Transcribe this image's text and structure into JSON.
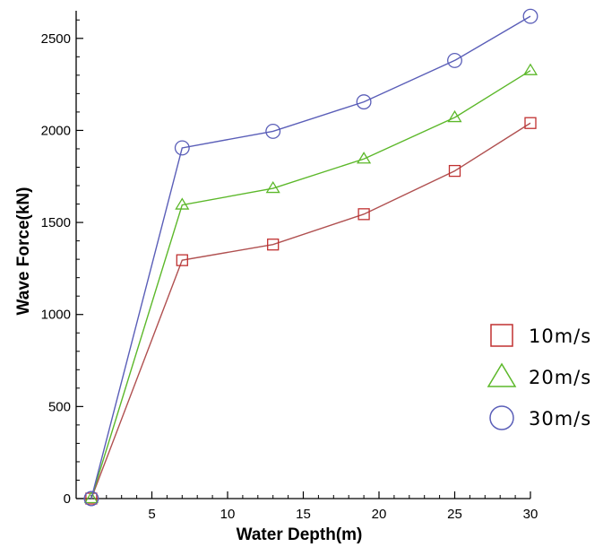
{
  "chart_data": {
    "type": "line",
    "xlabel": "Water Depth(m)",
    "ylabel": "Wave Force(kN)",
    "xlim": [
      0,
      30
    ],
    "ylim": [
      0,
      2650
    ],
    "xticks": [
      5,
      10,
      15,
      20,
      25,
      30
    ],
    "yticks": [
      0,
      500,
      1000,
      1500,
      2000,
      2500
    ],
    "grid": false,
    "legend_position": "right",
    "x": [
      1,
      7,
      13,
      19,
      25,
      30
    ],
    "series": [
      {
        "name": "10m/s",
        "marker": "square",
        "color": "#b05050",
        "marker_color": "#c03030",
        "values": [
          0,
          1295,
          1380,
          1545,
          1780,
          2040
        ]
      },
      {
        "name": "20m/s",
        "marker": "triangle",
        "color": "#5cb82a",
        "marker_color": "#5cb82a",
        "values": [
          0,
          1595,
          1685,
          1845,
          2070,
          2325
        ]
      },
      {
        "name": "30m/s",
        "marker": "circle",
        "color": "#5a5eb8",
        "marker_color": "#5a5eb8",
        "values": [
          0,
          1905,
          1995,
          2155,
          2380,
          2620
        ]
      }
    ]
  }
}
